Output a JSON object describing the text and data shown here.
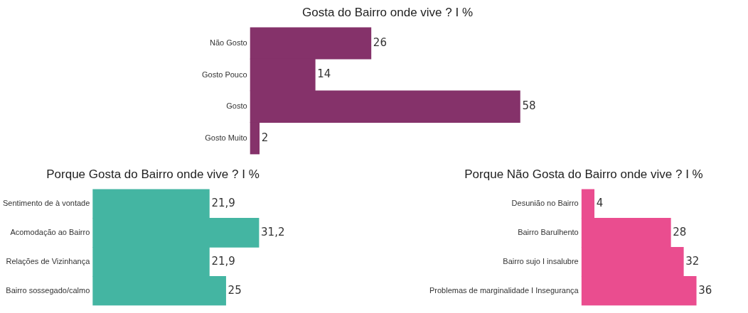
{
  "chart_data": [
    {
      "type": "bar",
      "orientation": "horizontal",
      "title": "Gosta do Bairro onde vive ? I %",
      "categories": [
        "Não Gosto",
        "Gosto Pouco",
        "Gosto",
        "Gosto Muito"
      ],
      "values": [
        26,
        14,
        58,
        2
      ],
      "color": "#85326a",
      "data_labels": true,
      "tick_labels": "y",
      "grid": false,
      "legend": false
    },
    {
      "type": "bar",
      "orientation": "horizontal",
      "title": "Porque Gosta do Bairro onde vive ? I %",
      "categories": [
        "Sentimento de à vontade",
        "Acomodação ao Bairro",
        "Relações de Vizinhança",
        "Bairro sossegado/calmo"
      ],
      "values": [
        21.9,
        31.2,
        21.9,
        25
      ],
      "value_labels": [
        "21,9",
        "31,2",
        "21,9",
        "25"
      ],
      "color": "#44b5a2",
      "tick_labels": "y",
      "grid": false,
      "legend": false
    },
    {
      "type": "bar",
      "orientation": "horizontal",
      "title": "Porque Não Gosta do Bairro onde vive ? I %",
      "categories": [
        "Desunião no Bairro",
        "Bairro Barulhento",
        "Bairro sujo I insalubre",
        "Problemas de marginalidade I Insegurança"
      ],
      "values": [
        4,
        28,
        32,
        36
      ],
      "color": "#ea4d8f",
      "data_labels": true,
      "tick_labels": "y",
      "grid": false,
      "legend": false
    }
  ]
}
